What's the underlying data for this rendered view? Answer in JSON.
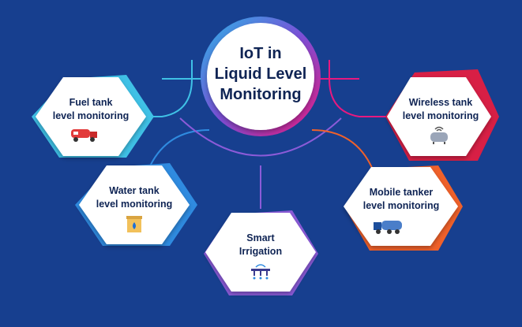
{
  "diagram": {
    "center": {
      "lines": [
        "IoT in",
        "Liquid Level",
        "Monitoring"
      ],
      "ring_gradient": [
        "#29b6e8",
        "#7b4fd6",
        "#e8197f"
      ]
    },
    "nodes": [
      {
        "id": "fuel",
        "lines": [
          "Fuel tank",
          "level monitoring"
        ],
        "icon": "fuel-tanker-truck-icon",
        "accent": "#3fc1e6"
      },
      {
        "id": "water",
        "lines": [
          "Water tank",
          "level monitoring"
        ],
        "icon": "water-tank-icon",
        "accent": "#2f8be0"
      },
      {
        "id": "irrigation",
        "lines": [
          "Smart",
          "Irrigation"
        ],
        "icon": "irrigation-sprinkler-icon",
        "accent": "#8b5bd8"
      },
      {
        "id": "mobile",
        "lines": [
          "Mobile tanker",
          "level monitoring"
        ],
        "icon": "mobile-tanker-truck-icon",
        "accent": "#f0612a"
      },
      {
        "id": "wireless",
        "lines": [
          "Wireless tank",
          "level monitoring"
        ],
        "icon": "wireless-tank-icon",
        "accent": "#d81f45"
      }
    ],
    "colors": {
      "background": "#173f8f",
      "hexagon_fill": "#ffffff",
      "text": "#0f2454"
    }
  }
}
